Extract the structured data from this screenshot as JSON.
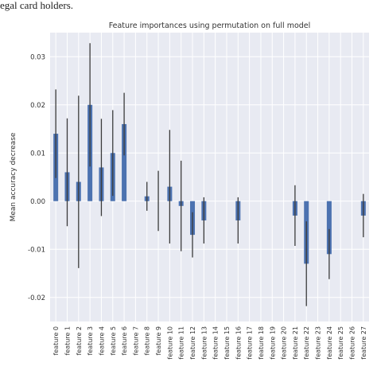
{
  "caption": "egal card holders.",
  "colors": {
    "plot_background": "#e8eaf2",
    "grid": "#ffffff",
    "bar": "#4c72b0",
    "error_bar": "#3b3b3b"
  },
  "chart_data": {
    "type": "bar",
    "title": "Feature importances using permutation on full model",
    "xlabel": "",
    "ylabel": "Mean accuracy decrease",
    "ylim": [
      -0.025,
      0.035
    ],
    "yticks": [
      -0.02,
      -0.01,
      0.0,
      0.01,
      0.02,
      0.03
    ],
    "ytick_labels": [
      "-0.02",
      "-0.01",
      "0.00",
      "0.01",
      "0.02",
      "0.03"
    ],
    "grid": true,
    "categories": [
      "feature 0",
      "feature 1",
      "feature 2",
      "feature 3",
      "feature 4",
      "feature 5",
      "feature 6",
      "feature 7",
      "feature 8",
      "feature 9",
      "feature 10",
      "feature 11",
      "feature 12",
      "feature 13",
      "feature 14",
      "feature 15",
      "feature 16",
      "feature 17",
      "feature 18",
      "feature 19",
      "feature 20",
      "feature 21",
      "feature 22",
      "feature 23",
      "feature 24",
      "feature 25",
      "feature 26",
      "feature 27"
    ],
    "values": [
      0.014,
      0.006,
      0.004,
      0.02,
      0.007,
      0.01,
      0.016,
      0.0,
      0.001,
      0.0,
      0.003,
      -0.001,
      -0.007,
      -0.004,
      0.0,
      0.0,
      -0.004,
      0.0,
      0.0,
      0.0,
      0.0,
      -0.003,
      -0.013,
      0.0,
      -0.011,
      0.0,
      0.0,
      -0.003
    ],
    "errors": [
      0.0092,
      0.0112,
      0.0179,
      0.0128,
      0.0101,
      0.0089,
      0.0065,
      0.0,
      0.003,
      0.0,
      0.0118,
      0.0094,
      0.0047,
      0.0048,
      0.0,
      0.0,
      0.0048,
      0.0,
      0.0,
      0.0,
      0.0,
      0.0063,
      0.0088,
      0.0,
      0.0052,
      0.0,
      0.0,
      0.0045
    ],
    "error_min": [
      null,
      null,
      null,
      null,
      null,
      null,
      null,
      null,
      null,
      -0.0062,
      null,
      null,
      null,
      null,
      null,
      null,
      null,
      null,
      null,
      null,
      null,
      null,
      null,
      null,
      null,
      null,
      null,
      null
    ],
    "error_max": [
      null,
      null,
      null,
      null,
      null,
      null,
      null,
      null,
      null,
      0.0063,
      null,
      null,
      null,
      null,
      null,
      null,
      null,
      null,
      null,
      null,
      null,
      null,
      null,
      null,
      null,
      null,
      null,
      null
    ]
  }
}
